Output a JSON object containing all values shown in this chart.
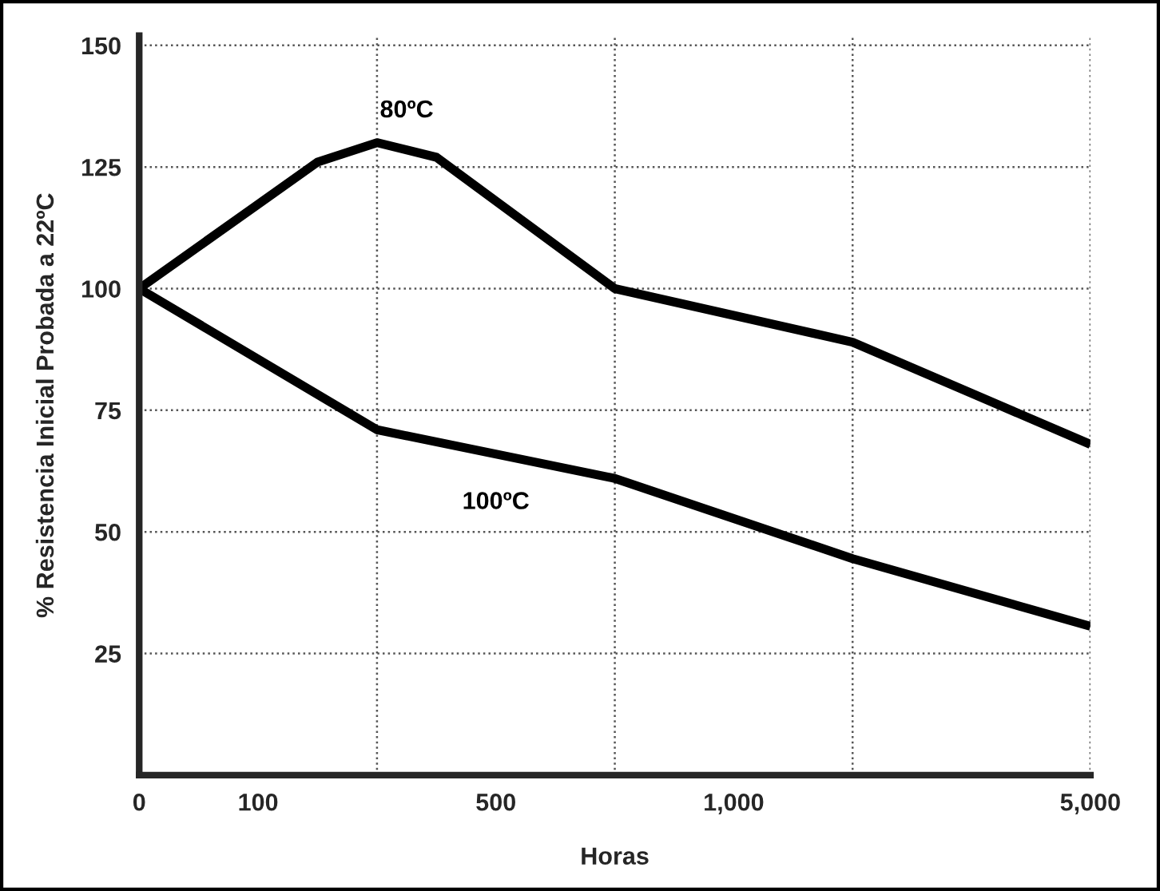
{
  "chart_data": {
    "type": "line",
    "xlabel": "Horas",
    "ylabel": "% Resistencia Inicial Probada a 22ºC",
    "categories": [
      "0",
      null,
      "100",
      null,
      null,
      null,
      "500",
      null,
      null,
      null,
      "1,000",
      null,
      null,
      null,
      null,
      null,
      "5,000"
    ],
    "series": [
      {
        "name": "80ºC",
        "color": "#000000",
        "values": [
          100,
          null,
          null,
          126,
          130,
          127,
          null,
          null,
          100,
          null,
          null,
          null,
          89,
          null,
          null,
          null,
          68
        ]
      },
      {
        "name": "100ºC",
        "color": "#000000",
        "values": [
          100,
          null,
          null,
          null,
          71,
          null,
          null,
          null,
          61,
          null,
          null,
          null,
          44.5,
          null,
          null,
          null,
          30.6
        ]
      }
    ],
    "ylim": [
      0,
      152
    ],
    "yticks": [
      25,
      50,
      75,
      100,
      125,
      150
    ],
    "grid": true,
    "line_style": "solid",
    "marker": "none"
  }
}
